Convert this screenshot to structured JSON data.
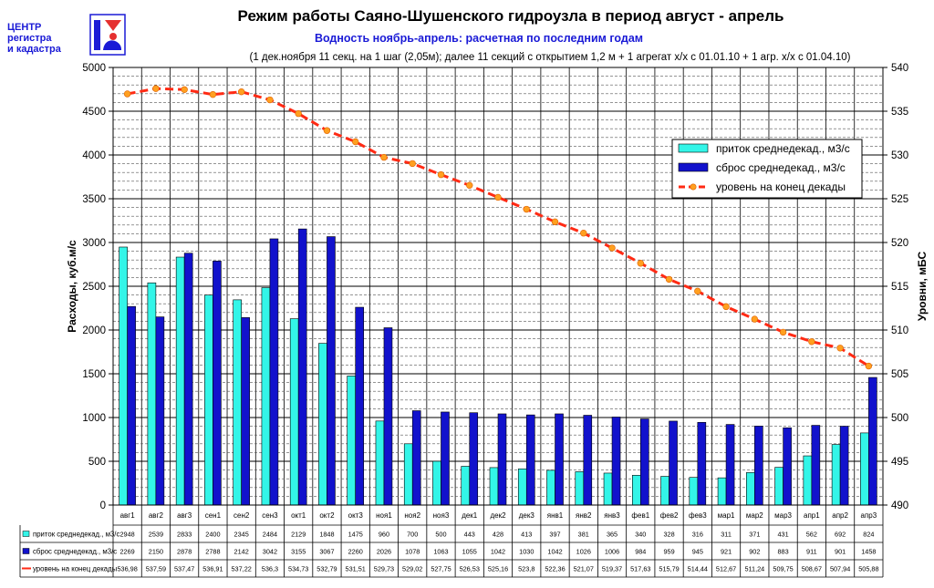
{
  "logo": {
    "line1": "ЦЕНТР",
    "line2": "регистра",
    "line3": "и кадастра"
  },
  "colors": {
    "inflow": "#33f5e8",
    "outflow": "#1212cc",
    "level": "#ff2a14",
    "marker": "#ffa020",
    "logo_text": "#1a1ad6",
    "logo_mark": "#e53030"
  },
  "chart_data": {
    "type": "bar",
    "title": "Режим работы Саяно-Шушенского гидроузла в период август - апрель",
    "subtitle": "Водность ноябрь-апрель: расчетная по последним годам",
    "subtitle2": "(1 дек.ноября 11 секц. на 1 шаг (2,05м); далее 11 секций с открытием 1,2 м + 1 агрегат х/х с 01.01.10 + 1 агр. х/х с 01.04.10)",
    "ylabel": "Расходы, куб.м/с",
    "y2label": "Уровни, мБС",
    "ylim": [
      0,
      5000
    ],
    "y2lim": [
      490,
      540
    ],
    "y_ticks": [
      "0",
      "500",
      "1000",
      "1500",
      "2000",
      "2500",
      "3000",
      "3500",
      "4000",
      "4500",
      "5000"
    ],
    "y2_ticks": [
      "490",
      "495",
      "500",
      "505",
      "510",
      "515",
      "520",
      "525",
      "530",
      "535",
      "540"
    ],
    "legend_position": "top-right",
    "grid": true,
    "categories": [
      "авг1",
      "авг2",
      "авг3",
      "сен1",
      "сен2",
      "сен3",
      "окт1",
      "окт2",
      "окт3",
      "ноя1",
      "ноя2",
      "ноя3",
      "дек1",
      "дек2",
      "дек3",
      "янв1",
      "янв2",
      "янв3",
      "фев1",
      "фев2",
      "фев3",
      "мар1",
      "мар2",
      "мар3",
      "апр1",
      "апр2",
      "апр3"
    ],
    "series": [
      {
        "name": "приток среднедекад., м3/с",
        "kind": "bar",
        "axis": "left",
        "values": [
          2948,
          2539,
          2833,
          2400,
          2345,
          2484,
          2129,
          1848,
          1475,
          960,
          700,
          500,
          443,
          428,
          413,
          397,
          381,
          365,
          340,
          328,
          316,
          311,
          371,
          431,
          562,
          692,
          824
        ],
        "labels": [
          "2948",
          "2539",
          "2833",
          "2400",
          "2345",
          "2484",
          "2129",
          "1848",
          "1475",
          "960",
          "700",
          "500",
          "443",
          "428",
          "413",
          "397",
          "381",
          "365",
          "340",
          "328",
          "316",
          "311",
          "371",
          "431",
          "562",
          "692",
          "824"
        ]
      },
      {
        "name": "сброс среднедекад., м3/с",
        "kind": "bar",
        "axis": "left",
        "values": [
          2269,
          2150,
          2878,
          2788,
          2142,
          3042,
          3155,
          3067,
          2260,
          2026,
          1078,
          1063,
          1055,
          1042,
          1030,
          1042,
          1026,
          1006,
          984,
          959,
          945,
          921,
          902,
          883,
          911,
          901,
          1458
        ],
        "labels": [
          "2269",
          "2150",
          "2878",
          "2788",
          "2142",
          "3042",
          "3155",
          "3067",
          "2260",
          "2026",
          "1078",
          "1063",
          "1055",
          "1042",
          "1030",
          "1042",
          "1026",
          "1006",
          "984",
          "959",
          "945",
          "921",
          "902",
          "883",
          "911",
          "901",
          "1458"
        ]
      },
      {
        "name": "уровень на конец декады",
        "kind": "line",
        "axis": "right",
        "values": [
          536.98,
          537.59,
          537.47,
          536.91,
          537.22,
          536.3,
          534.73,
          532.79,
          531.51,
          529.73,
          529.02,
          527.75,
          526.53,
          525.16,
          523.8,
          522.36,
          521.07,
          519.37,
          517.63,
          515.79,
          514.44,
          512.67,
          511.24,
          509.75,
          508.67,
          507.94,
          505.88
        ],
        "labels": [
          "536,98",
          "537,59",
          "537,47",
          "536,91",
          "537,22",
          "536,3",
          "534,73",
          "532,79",
          "531,51",
          "529,73",
          "529,02",
          "527,75",
          "526,53",
          "525,16",
          "523,8",
          "522,36",
          "521,07",
          "519,37",
          "517,63",
          "515,79",
          "514,44",
          "512,67",
          "511,24",
          "509,75",
          "508,67",
          "507,94",
          "505,88"
        ]
      }
    ]
  }
}
